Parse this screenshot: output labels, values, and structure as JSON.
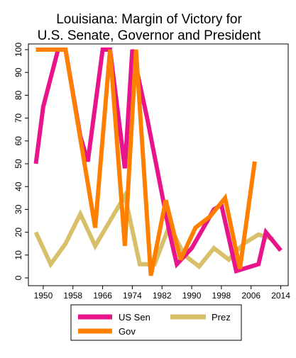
{
  "chart_data": {
    "type": "line",
    "title_line1": "Louisiana: Margin of Victory for",
    "title_line2": "U.S. Senate, Governor and President",
    "title": "Louisiana: Margin of Victory for U.S. Senate, Governor and President",
    "xlabel": "",
    "ylabel": "",
    "xlim": [
      1946,
      2016
    ],
    "ylim": [
      0,
      100
    ],
    "x_ticks": [
      1950,
      1958,
      1966,
      1974,
      1982,
      1990,
      1998,
      2006,
      2014
    ],
    "y_ticks": [
      0,
      10,
      20,
      30,
      40,
      50,
      60,
      70,
      80,
      90,
      100
    ],
    "x_tick_labels": [
      "1950",
      "1958",
      "1966",
      "1974",
      "1982",
      "1990",
      "1998",
      "2006",
      "2014"
    ],
    "y_tick_labels": [
      "0",
      "10",
      "20",
      "30",
      "40",
      "50",
      "60",
      "70",
      "80",
      "90",
      "100"
    ],
    "grid": false,
    "legend_position": "bottom",
    "series": [
      {
        "name": "US Sen",
        "color": "#e8148c",
        "points": [
          [
            1948,
            50
          ],
          [
            1950,
            75
          ],
          [
            1954,
            100
          ],
          [
            1956,
            100
          ],
          [
            1960,
            62
          ],
          [
            1962,
            51
          ],
          [
            1966,
            100
          ],
          [
            1968,
            100
          ],
          [
            1972,
            48
          ],
          [
            1974,
            100
          ],
          [
            1978,
            70
          ],
          [
            1984,
            20
          ],
          [
            1986,
            6
          ],
          [
            1990,
            13
          ],
          [
            1996,
            30
          ],
          [
            1998,
            32
          ],
          [
            2002,
            3
          ],
          [
            2008,
            6
          ],
          [
            2010,
            20
          ],
          [
            2014,
            12
          ]
        ]
      },
      {
        "name": "Prez",
        "color": "#d8c06a",
        "points": [
          [
            1948,
            20
          ],
          [
            1952,
            6
          ],
          [
            1956,
            15
          ],
          [
            1960,
            28
          ],
          [
            1964,
            14
          ],
          [
            1968,
            25
          ],
          [
            1972,
            36
          ],
          [
            1976,
            6
          ],
          [
            1980,
            6
          ],
          [
            1984,
            23
          ],
          [
            1988,
            10
          ],
          [
            1992,
            5
          ],
          [
            1996,
            13
          ],
          [
            2000,
            8
          ],
          [
            2004,
            15
          ],
          [
            2008,
            19
          ],
          [
            2012,
            17
          ]
        ]
      },
      {
        "name": "Gov",
        "color": "#ff8000",
        "points": [
          [
            1948,
            100
          ],
          [
            1952,
            100
          ],
          [
            1956,
            100
          ],
          [
            1964,
            22
          ],
          [
            1968,
            100
          ],
          [
            1972,
            14
          ],
          [
            1975,
            100
          ],
          [
            1979,
            1
          ],
          [
            1983,
            34
          ],
          [
            1987,
            8
          ],
          [
            1991,
            22
          ],
          [
            1995,
            27
          ],
          [
            1999,
            35
          ],
          [
            2003,
            4
          ],
          [
            2007,
            51
          ]
        ]
      }
    ]
  }
}
